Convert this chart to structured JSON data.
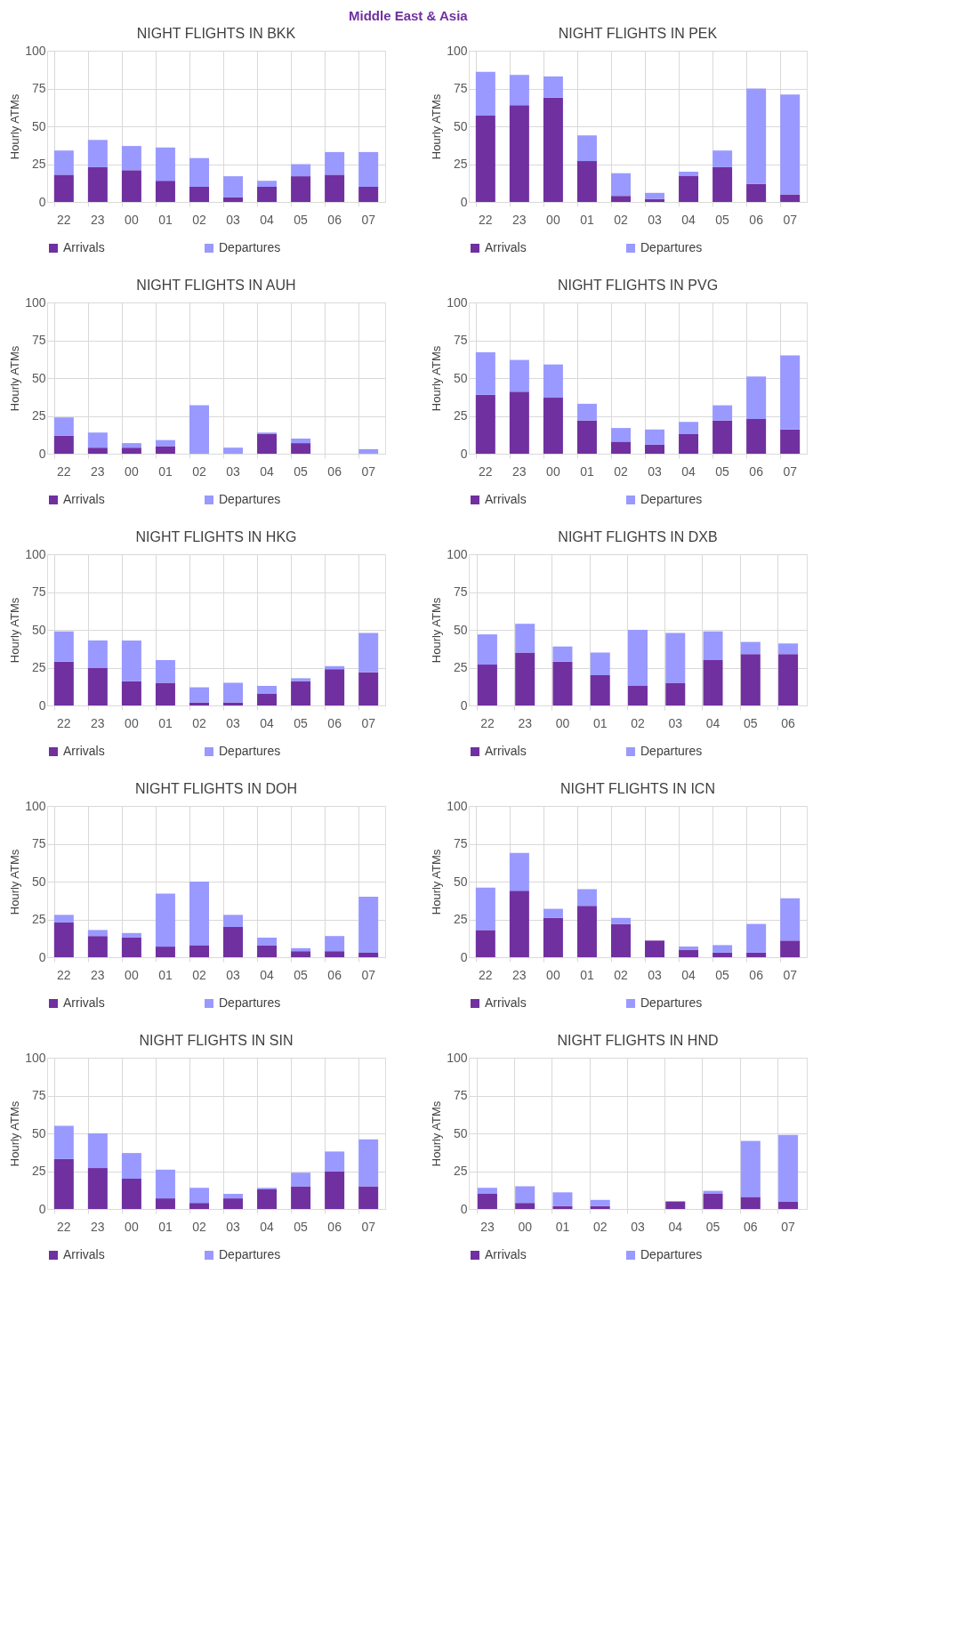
{
  "chart_data": [
    {
      "type": "bar",
      "stacked": true,
      "title": "NIGHT FLIGHTS IN BKK",
      "annotations": [
        "Middle East & Asia"
      ],
      "ylabel": "Hourly ATMs",
      "ylim": [
        0,
        100
      ],
      "yticks": [
        0,
        25,
        50,
        75,
        100
      ],
      "grid": true,
      "legend": "bottom",
      "categories": [
        "22",
        "23",
        "00",
        "01",
        "02",
        "03",
        "04",
        "05",
        "06",
        "07"
      ],
      "series": [
        {
          "name": "Arrivals",
          "color": "#7030a0",
          "values": [
            18,
            23,
            21,
            14,
            10,
            3,
            10,
            17,
            18,
            10
          ]
        },
        {
          "name": "Departures",
          "color": "#9999ff",
          "values": [
            16,
            18,
            16,
            22,
            19,
            14,
            4,
            8,
            15,
            23
          ]
        }
      ]
    },
    {
      "type": "bar",
      "stacked": true,
      "title": "NIGHT FLIGHTS IN PEK",
      "ylabel": "Hourly ATMs",
      "ylim": [
        0,
        100
      ],
      "yticks": [
        0,
        25,
        50,
        75,
        100
      ],
      "grid": true,
      "legend": "bottom",
      "categories": [
        "22",
        "23",
        "00",
        "01",
        "02",
        "03",
        "04",
        "05",
        "06",
        "07"
      ],
      "series": [
        {
          "name": "Arrivals",
          "color": "#7030a0",
          "values": [
            57,
            64,
            69,
            27,
            4,
            2,
            17,
            23,
            12,
            5
          ]
        },
        {
          "name": "Departures",
          "color": "#9999ff",
          "values": [
            29,
            20,
            14,
            17,
            15,
            4,
            3,
            11,
            63,
            66
          ]
        }
      ]
    },
    {
      "type": "bar",
      "stacked": true,
      "title": "NIGHT FLIGHTS IN AUH",
      "ylabel": "Hourly ATMs",
      "ylim": [
        0,
        100
      ],
      "yticks": [
        0,
        25,
        50,
        75,
        100
      ],
      "grid": true,
      "legend": "bottom",
      "categories": [
        "22",
        "23",
        "00",
        "01",
        "02",
        "03",
        "04",
        "05",
        "06",
        "07"
      ],
      "series": [
        {
          "name": "Arrivals",
          "color": "#7030a0",
          "values": [
            12,
            4,
            4,
            5,
            0,
            0,
            13,
            7,
            0,
            0
          ]
        },
        {
          "name": "Departures",
          "color": "#9999ff",
          "values": [
            12,
            10,
            3,
            4,
            32,
            4,
            1,
            3,
            0,
            3
          ]
        }
      ]
    },
    {
      "type": "bar",
      "stacked": true,
      "title": "NIGHT FLIGHTS IN PVG",
      "ylabel": "Hourly ATMs",
      "ylim": [
        0,
        100
      ],
      "yticks": [
        0,
        25,
        50,
        75,
        100
      ],
      "grid": true,
      "legend": "bottom",
      "categories": [
        "22",
        "23",
        "00",
        "01",
        "02",
        "03",
        "04",
        "05",
        "06",
        "07"
      ],
      "series": [
        {
          "name": "Arrivals",
          "color": "#7030a0",
          "values": [
            39,
            41,
            37,
            22,
            8,
            6,
            13,
            22,
            23,
            16
          ]
        },
        {
          "name": "Departures",
          "color": "#9999ff",
          "values": [
            28,
            21,
            22,
            11,
            9,
            10,
            8,
            10,
            28,
            49
          ]
        }
      ]
    },
    {
      "type": "bar",
      "stacked": true,
      "title": "NIGHT FLIGHTS IN HKG",
      "ylabel": "Hourly ATMs",
      "ylim": [
        0,
        100
      ],
      "yticks": [
        0,
        25,
        50,
        75,
        100
      ],
      "grid": true,
      "legend": "bottom",
      "categories": [
        "22",
        "23",
        "00",
        "01",
        "02",
        "03",
        "04",
        "05",
        "06",
        "07"
      ],
      "series": [
        {
          "name": "Arrivals",
          "color": "#7030a0",
          "values": [
            29,
            25,
            16,
            15,
            2,
            2,
            8,
            16,
            24,
            22
          ]
        },
        {
          "name": "Departures",
          "color": "#9999ff",
          "values": [
            20,
            18,
            27,
            15,
            10,
            13,
            5,
            2,
            2,
            26
          ]
        }
      ]
    },
    {
      "type": "bar",
      "stacked": true,
      "title": "NIGHT FLIGHTS IN DXB",
      "ylabel": "Hourly ATMs",
      "ylim": [
        0,
        100
      ],
      "yticks": [
        0,
        25,
        50,
        75,
        100
      ],
      "grid": true,
      "legend": "bottom",
      "categories": [
        "22",
        "23",
        "00",
        "01",
        "02",
        "03",
        "04",
        "05",
        "06"
      ],
      "series": [
        {
          "name": "Arrivals",
          "color": "#7030a0",
          "values": [
            27,
            35,
            29,
            20,
            13,
            15,
            30,
            34,
            34
          ]
        },
        {
          "name": "Departures",
          "color": "#9999ff",
          "values": [
            20,
            19,
            10,
            15,
            37,
            33,
            19,
            8,
            7
          ]
        }
      ]
    },
    {
      "type": "bar",
      "stacked": true,
      "title": "NIGHT FLIGHTS IN DOH",
      "ylabel": "Hourly ATMs",
      "ylim": [
        0,
        100
      ],
      "yticks": [
        0,
        25,
        50,
        75,
        100
      ],
      "grid": true,
      "legend": "bottom",
      "categories": [
        "22",
        "23",
        "00",
        "01",
        "02",
        "03",
        "04",
        "05",
        "06",
        "07"
      ],
      "series": [
        {
          "name": "Arrivals",
          "color": "#7030a0",
          "values": [
            23,
            14,
            13,
            7,
            8,
            20,
            8,
            4,
            4,
            3
          ]
        },
        {
          "name": "Departures",
          "color": "#9999ff",
          "values": [
            5,
            4,
            3,
            35,
            42,
            8,
            5,
            2,
            10,
            37
          ]
        }
      ]
    },
    {
      "type": "bar",
      "stacked": true,
      "title": "NIGHT FLIGHTS IN ICN",
      "ylabel": "Hourly ATMs",
      "ylim": [
        0,
        100
      ],
      "yticks": [
        0,
        25,
        50,
        75,
        100
      ],
      "grid": true,
      "legend": "bottom",
      "categories": [
        "22",
        "23",
        "00",
        "01",
        "02",
        "03",
        "04",
        "05",
        "06",
        "07"
      ],
      "series": [
        {
          "name": "Arrivals",
          "color": "#7030a0",
          "values": [
            18,
            44,
            26,
            34,
            22,
            11,
            5,
            3,
            3,
            11
          ]
        },
        {
          "name": "Departures",
          "color": "#9999ff",
          "values": [
            28,
            25,
            6,
            11,
            4,
            0,
            2,
            5,
            19,
            28
          ]
        }
      ]
    },
    {
      "type": "bar",
      "stacked": true,
      "title": "NIGHT FLIGHTS IN SIN",
      "ylabel": "Hourly ATMs",
      "ylim": [
        0,
        100
      ],
      "yticks": [
        0,
        25,
        50,
        75,
        100
      ],
      "grid": true,
      "legend": "bottom",
      "categories": [
        "22",
        "23",
        "00",
        "01",
        "02",
        "03",
        "04",
        "05",
        "06",
        "07"
      ],
      "series": [
        {
          "name": "Arrivals",
          "color": "#7030a0",
          "values": [
            33,
            27,
            20,
            7,
            4,
            7,
            13,
            15,
            25,
            15
          ]
        },
        {
          "name": "Departures",
          "color": "#9999ff",
          "values": [
            22,
            23,
            17,
            19,
            10,
            3,
            1,
            9,
            13,
            31
          ]
        }
      ]
    },
    {
      "type": "bar",
      "stacked": true,
      "title": "NIGHT FLIGHTS IN HND",
      "ylabel": "Hourly ATMs",
      "ylim": [
        0,
        100
      ],
      "yticks": [
        0,
        25,
        50,
        75,
        100
      ],
      "grid": true,
      "legend": "bottom",
      "categories": [
        "23",
        "00",
        "01",
        "02",
        "03",
        "04",
        "05",
        "06",
        "07"
      ],
      "series": [
        {
          "name": "Arrivals",
          "color": "#7030a0",
          "values": [
            10,
            4,
            2,
            2,
            0,
            5,
            10,
            8,
            5
          ]
        },
        {
          "name": "Departures",
          "color": "#9999ff",
          "values": [
            4,
            11,
            9,
            4,
            0,
            0,
            2,
            37,
            44
          ]
        }
      ]
    }
  ]
}
